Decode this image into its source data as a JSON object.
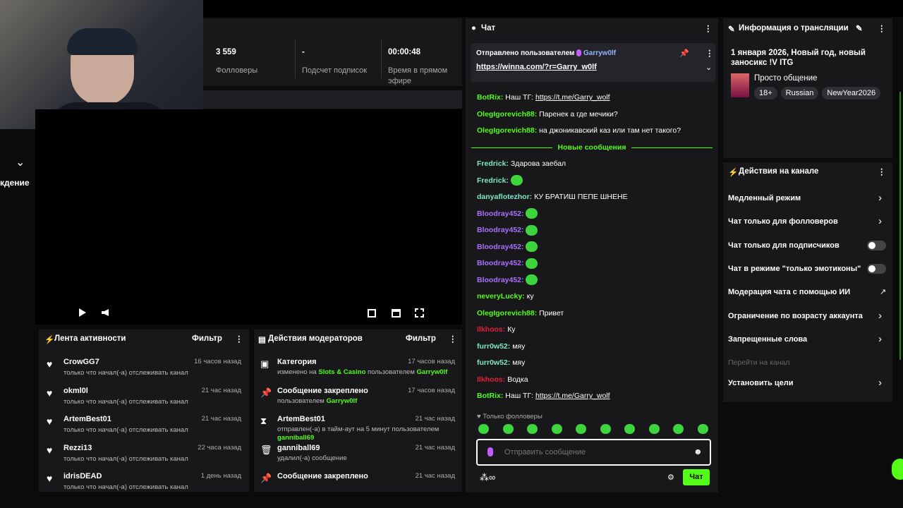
{
  "stats": [
    {
      "value": "3 559",
      "label": "Фолловеры"
    },
    {
      "value": "-",
      "label": "Подсчет подписок"
    },
    {
      "value": "00:00:48",
      "label": "Время в прямом эфире"
    }
  ],
  "side_text": "кдение",
  "activity": {
    "title": "Лента активности",
    "filter": "Фильтр",
    "items": [
      {
        "name": "CrowGG7",
        "time": "16 часов назад",
        "desc": "только что начал(-а) отслеживать канал"
      },
      {
        "name": "okml0l",
        "time": "21 час назад",
        "desc": "только что начал(-а) отслеживать канал"
      },
      {
        "name": "ArtemBest01",
        "time": "21 час назад",
        "desc": "только что начал(-а) отслеживать канал"
      },
      {
        "name": "Rezzi13",
        "time": "22 часа назад",
        "desc": "только что начал(-а) отслеживать канал"
      },
      {
        "name": "idrisDEAD",
        "time": "1 день назад",
        "desc": "только что начал(-а) отслеживать канал"
      }
    ]
  },
  "moderation": {
    "title": "Действия модераторов",
    "filter": "Фильтр",
    "items": [
      {
        "title": "Категория",
        "time": "17 часов назад",
        "desc": [
          "изменено на ",
          "Slots & Casino",
          " пользователем ",
          "Garryw0lf"
        ]
      },
      {
        "title": "Сообщение закреплено",
        "time": "17 часов назад",
        "desc": [
          "пользователем ",
          "Garryw0lf"
        ]
      },
      {
        "title": "ArtemBest01",
        "time": "21 час назад",
        "desc": [
          "отправлен(-а) в тайм-аут на 5 минут пользователем ",
          "ganniball69"
        ]
      },
      {
        "title": "ganniball69",
        "time": "21 час назад",
        "desc": [
          "удалил(-а) сообщение"
        ]
      },
      {
        "title": "Сообщение закреплено",
        "time": "21 час назад",
        "desc": []
      }
    ]
  },
  "chat": {
    "title": "Чат",
    "pinned": {
      "by": "Отправлено пользователем",
      "user": "Garryw0lf",
      "link": "https://winna.com/?r=Garry_w0lf"
    },
    "before": [
      {
        "user": "BotRix:",
        "color": "#53fc18",
        "text": "Наш ТГ: ",
        "link": "https://t.me/Garry_wolf"
      },
      {
        "user": "OlegIgorevich88:",
        "color": "#53fc18",
        "text": "Паренек а где мечики?"
      },
      {
        "user": "OlegIgorevich88:",
        "color": "#53fc18",
        "text": "на джоникавский каз или там нет такого?"
      }
    ],
    "new_label": "Новые сообщения",
    "after": [
      {
        "user": "Fredrick:",
        "color": "#7ee8c8",
        "text": "Здарова заебал"
      },
      {
        "user": "Fredrick:",
        "color": "#7ee8c8"
      },
      {
        "user": "danyaflotezhor:",
        "color": "#7ee8c8",
        "text": "КУ БРАТИШ ПЕПЕ ШНЕНЕ"
      },
      {
        "user": "Bloodray452:",
        "color": "#a970ff"
      },
      {
        "user": "Bloodray452:",
        "color": "#a970ff"
      },
      {
        "user": "Bloodray452:",
        "color": "#a970ff"
      },
      {
        "user": "Bloodray452:",
        "color": "#a970ff"
      },
      {
        "user": "Bloodray452:",
        "color": "#a970ff"
      },
      {
        "user": "neveryLucky:",
        "color": "#53fc18",
        "text": "ку"
      },
      {
        "user": "OlegIgorevich88:",
        "color": "#53fc18",
        "text": "Привет"
      },
      {
        "user": "Ilkhoos:",
        "color": "#e0203a",
        "text": "Ку"
      },
      {
        "user": "furr0w52:",
        "color": "#7ee8c8",
        "text": "мяу"
      },
      {
        "user": "furr0w52:",
        "color": "#7ee8c8",
        "text": "мяу"
      },
      {
        "user": "Ilkhoos:",
        "color": "#e0203a",
        "text": "Водка"
      },
      {
        "user": "BotRix:",
        "color": "#53fc18",
        "text": "Наш ТГ: ",
        "link": "https://t.me/Garry_wolf"
      }
    ],
    "followers_only": "Только фолловеры",
    "placeholder": "Отправить сообщение",
    "send": "Чат"
  },
  "info": {
    "title": "Информация о трансляции",
    "stream_title": "1 января 2026, Новый год, новый заносикс !V ITG",
    "category": "Просто общение",
    "tags": [
      "18+",
      "Russian",
      "NewYear2026"
    ]
  },
  "actions": {
    "title": "Действия на канале",
    "items": [
      {
        "label": "Медленный режим",
        "control": "arrow"
      },
      {
        "label": "Чат только для фолловеров",
        "control": "arrow"
      },
      {
        "label": "Чат только для подписчиков",
        "control": "toggle"
      },
      {
        "label": "Чат в режиме \"только эмотиконы\"",
        "control": "toggle"
      },
      {
        "label": "Модерация чата с помощью ИИ",
        "control": "external"
      },
      {
        "label": "Ограничение по возрасту аккаунта",
        "control": "arrow"
      },
      {
        "label": "Запрещенные слова",
        "control": "arrow"
      },
      {
        "label": "Перейти на канал",
        "control": "disabled"
      },
      {
        "label": "Установить цели",
        "control": "arrow"
      }
    ]
  }
}
